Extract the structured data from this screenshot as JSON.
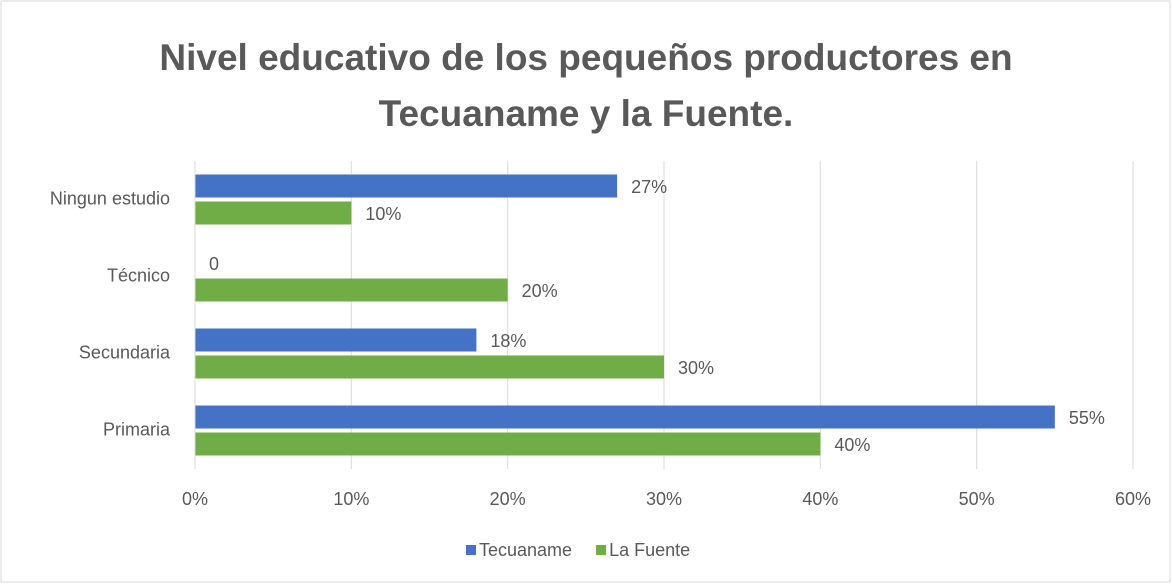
{
  "chart_data": {
    "type": "bar",
    "orientation": "horizontal",
    "title": "Nivel educativo de los pequeños productores en Tecuaname y la Fuente.",
    "categories": [
      "Ningun estudio",
      "Técnico ",
      "Secundaria",
      "Primaria"
    ],
    "series": [
      {
        "name": "Tecuaname",
        "color": "#4472c4",
        "values": [
          27,
          0,
          18,
          55
        ],
        "value_labels": [
          "27%",
          "0",
          "18%",
          "55%"
        ]
      },
      {
        "name": "La Fuente",
        "color": "#70ad47",
        "values": [
          10,
          20,
          30,
          40
        ],
        "value_labels": [
          "10%",
          "20%",
          "30%",
          "40%"
        ]
      }
    ],
    "xlim": [
      0,
      60
    ],
    "xticks": [
      {
        "value": 0,
        "label": "0%"
      },
      {
        "value": 10,
        "label": "10%"
      },
      {
        "value": 20,
        "label": "20%"
      },
      {
        "value": 30,
        "label": "30%"
      },
      {
        "value": 40,
        "label": "40%"
      },
      {
        "value": 50,
        "label": "50%"
      },
      {
        "value": 60,
        "label": "60%"
      }
    ],
    "grid": true,
    "legend": "bottom"
  }
}
